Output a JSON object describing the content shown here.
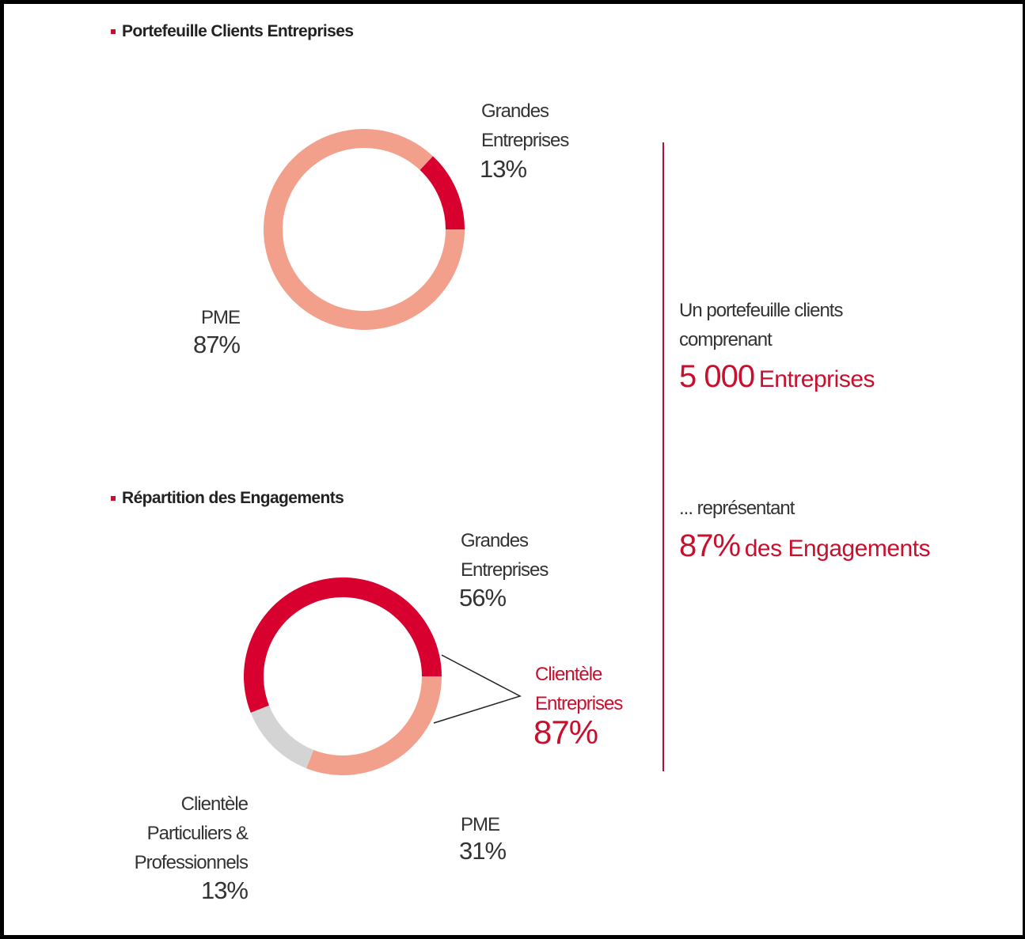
{
  "chart_data": [
    {
      "type": "pie",
      "donut": true,
      "title": "Portefeuille Clients Entreprises",
      "categories": [
        "Grandes Entreprises",
        "PME"
      ],
      "values": [
        13,
        87
      ],
      "value_labels": [
        "13%",
        "87%"
      ],
      "colors": [
        "#d8002e",
        "#f2a08c"
      ]
    },
    {
      "type": "pie",
      "donut": true,
      "title": "Répartition des Engagements",
      "categories": [
        "Grandes Entreprises",
        "PME",
        "Clientèle Particuliers & Professionnels"
      ],
      "values": [
        56,
        31,
        13
      ],
      "value_labels": [
        "56%",
        "31%",
        "13%"
      ],
      "colors": [
        "#d8002e",
        "#f2a08c",
        "#d4d4d4"
      ],
      "group": {
        "label": "Clientèle Entreprises",
        "value": 87,
        "value_label": "87%"
      }
    }
  ],
  "side_note": {
    "intro": "Un portefeuille clients comprenant",
    "count": "5 000",
    "count_unit": "Entreprises",
    "link": "... représentant",
    "share": "87%",
    "share_unit": "des Engagements"
  }
}
